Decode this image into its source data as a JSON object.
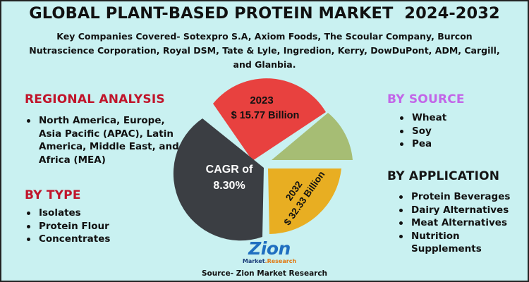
{
  "title": "GLOBAL PLANT-BASED PROTEIN MARKET  2024-2032",
  "companies": "Key Companies Covered- Sotexpro S.A, Axiom Foods, The Scoular Company, Burcon Nutrascience Corporation, Royal DSM, Tate & Lyle, Ingredion, Kerry, DowDuPont, ADM, Cargill, and Glanbia.",
  "regional": {
    "heading": "REGIONAL ANALYSIS",
    "items": [
      "North America, Europe, Asia Pacific (APAC), Latin America, Middle East, and Africa (MEA)"
    ]
  },
  "type": {
    "heading": "BY TYPE",
    "items": [
      "Isolates",
      "Protein Flour",
      "Concentrates"
    ]
  },
  "source_segment": {
    "heading": "BY SOURCE",
    "items": [
      "Wheat",
      "Soy",
      "Pea"
    ]
  },
  "application": {
    "heading": "BY APPLICATION",
    "items": [
      "Protein Beverages",
      "Dairy Alternatives",
      "Meat Alternatives",
      "Nutrition Supplements"
    ]
  },
  "pie": {
    "year_2023": "2023",
    "value_2023": "$ 15.77 Billion",
    "year_2032": "2032",
    "value_2032": "$ 32.33 Billion",
    "cagr_line1": "CAGR of",
    "cagr_line2": "8.30%",
    "colors": {
      "red": "#e8413f",
      "green": "#a6bd74",
      "yellow": "#e8ae22",
      "dark": "#3b3e43",
      "title_red": "#c0152b",
      "title_purple": "#c266e8",
      "logo_blue": "#1f6fc0",
      "logo_orange": "#e07a14"
    }
  },
  "logo": {
    "word": "Zion",
    "sub_1": "Market",
    "sub_2": ".Research"
  },
  "source_note": "Source- Zion Market Research"
}
